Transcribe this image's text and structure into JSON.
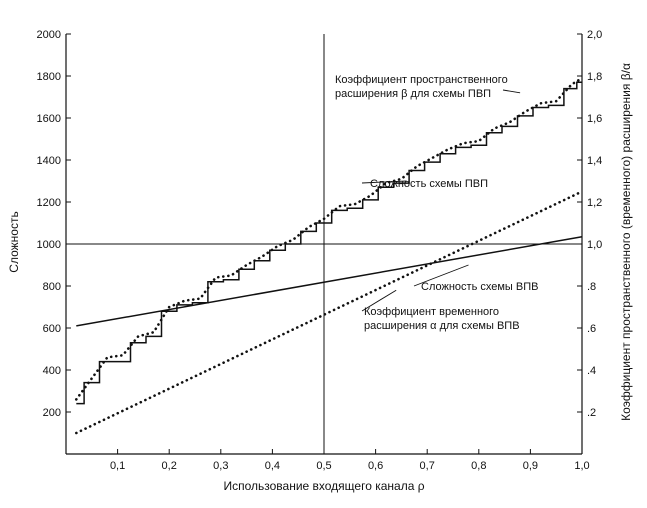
{
  "chart_data": {
    "type": "line",
    "xlabel": "Использование входящего канала ρ",
    "ylabel_left": "Сложность",
    "ylabel_right": "Коэффициент пространственного (временного) расширения β/α",
    "xlim": [
      0,
      1.0
    ],
    "ylim_left": [
      0,
      2000
    ],
    "ylim_right": [
      0,
      2.0
    ],
    "x_ticks": [
      0.1,
      0.2,
      0.3,
      0.4,
      0.5,
      0.6,
      0.7,
      0.8,
      0.9,
      1.0
    ],
    "x_tick_labels": [
      "0,1",
      "0,2",
      "0,3",
      "0,4",
      "0,5",
      "0,6",
      "0,7",
      "0,8",
      "0,9",
      "1,0"
    ],
    "y_left_ticks": [
      200,
      400,
      600,
      800,
      1000,
      1200,
      1400,
      1600,
      1800,
      2000
    ],
    "y_left_tick_labels": [
      "200",
      "400",
      "600",
      "800",
      "1000",
      "1200",
      "1400",
      "1600",
      "1800",
      "2000"
    ],
    "y_right_ticks": [
      0.2,
      0.4,
      0.6,
      0.8,
      1.0,
      1.2,
      1.4,
      1.6,
      1.8,
      2.0
    ],
    "y_right_tick_labels": [
      ".2",
      ".4",
      ".6",
      ".8",
      "1,0",
      "1,2",
      "1,4",
      "1,6",
      "1,8",
      "2,0"
    ],
    "reference_lines": {
      "vertical_x": 0.5,
      "horizontal_y_left": 1000
    },
    "series": [
      {
        "axis": "left",
        "style": "solid-step",
        "x": [
          0.02,
          0.05,
          0.08,
          0.11,
          0.14,
          0.17,
          0.2,
          0.23,
          0.26,
          0.29,
          0.32,
          0.35,
          0.38,
          0.41,
          0.44,
          0.47,
          0.5,
          0.53,
          0.56,
          0.59,
          0.62,
          0.65,
          0.68,
          0.71,
          0.74,
          0.77,
          0.8,
          0.83,
          0.86,
          0.89,
          0.92,
          0.95,
          0.98,
          1.0
        ],
        "y": [
          240,
          340,
          440,
          440,
          530,
          560,
          680,
          710,
          720,
          820,
          830,
          880,
          920,
          970,
          1000,
          1060,
          1100,
          1160,
          1170,
          1210,
          1270,
          1290,
          1350,
          1390,
          1430,
          1460,
          1470,
          1530,
          1560,
          1610,
          1650,
          1660,
          1740,
          1770
        ]
      },
      {
        "axis": "right",
        "style": "dotted",
        "x": [
          0.02,
          0.05,
          0.08,
          0.11,
          0.14,
          0.17,
          0.2,
          0.23,
          0.26,
          0.29,
          0.32,
          0.35,
          0.38,
          0.41,
          0.44,
          0.47,
          0.5,
          0.53,
          0.56,
          0.59,
          0.62,
          0.65,
          0.68,
          0.71,
          0.74,
          0.77,
          0.8,
          0.83,
          0.86,
          0.89,
          0.92,
          0.95,
          0.98,
          1.0
        ],
        "y": [
          0.26,
          0.36,
          0.46,
          0.47,
          0.56,
          0.58,
          0.7,
          0.73,
          0.74,
          0.84,
          0.85,
          0.9,
          0.94,
          0.99,
          1.02,
          1.08,
          1.12,
          1.18,
          1.19,
          1.23,
          1.29,
          1.31,
          1.37,
          1.41,
          1.45,
          1.48,
          1.49,
          1.55,
          1.58,
          1.63,
          1.67,
          1.68,
          1.76,
          1.79
        ]
      },
      {
        "axis": "left",
        "style": "solid",
        "x": [
          0.02,
          1.0
        ],
        "y": [
          610,
          1035
        ]
      },
      {
        "axis": "right",
        "style": "dotted",
        "x": [
          0.02,
          1.0
        ],
        "y": [
          0.1,
          1.25
        ]
      }
    ],
    "annotations": [
      {
        "lines": [
          "Коэффициент пространственного",
          "расширения β для схемы ПВП"
        ],
        "target_x": 0.88,
        "target_y_right": 1.72
      },
      {
        "lines": [
          "Сложность схемы ПВП"
        ],
        "target_x": 0.66,
        "target_y_left": 1300
      },
      {
        "lines": [
          "Сложность схемы ВПВ"
        ],
        "target_x": 0.78,
        "target_y_left": 900
      },
      {
        "lines": [
          "Коэффициент временного",
          "расширения α для схемы ВПВ"
        ],
        "target_x": 0.64,
        "target_y_right": 0.78
      }
    ]
  }
}
